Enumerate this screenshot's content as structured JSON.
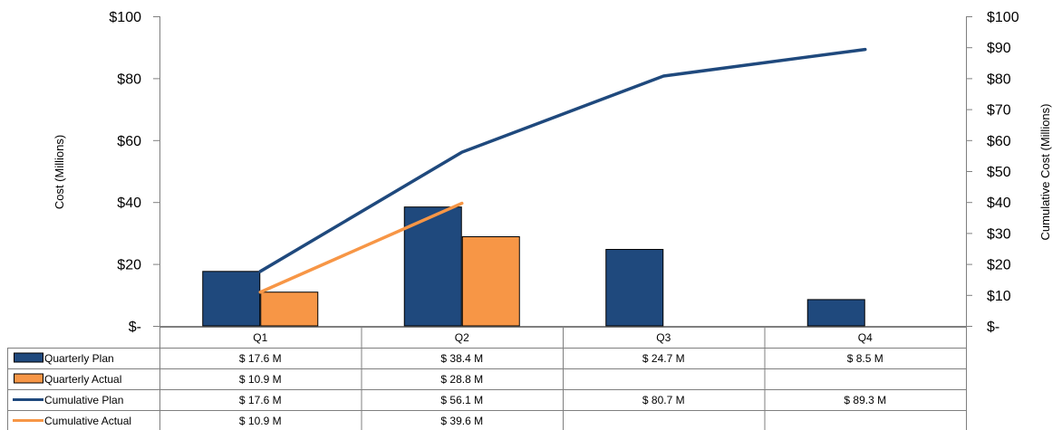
{
  "chart_data": {
    "type": "bar",
    "categories": [
      "Q1",
      "Q2",
      "Q3",
      "Q4"
    ],
    "series": [
      {
        "name": "Quarterly Plan",
        "kind": "bar",
        "axis": "left",
        "color": "#1f497d",
        "values": [
          17.6,
          38.4,
          24.7,
          8.5
        ],
        "labels": [
          "$ 17.6 M",
          "$ 38.4 M",
          "$ 24.7 M",
          "$ 8.5 M"
        ]
      },
      {
        "name": "Quarterly Actual",
        "kind": "bar",
        "axis": "left",
        "color": "#f79646",
        "values": [
          10.9,
          28.8,
          null,
          null
        ],
        "labels": [
          "$ 10.9 M",
          "$ 28.8 M",
          "",
          ""
        ]
      },
      {
        "name": "Cumulative Plan",
        "kind": "line",
        "axis": "right",
        "color": "#1f497d",
        "values": [
          17.6,
          56.1,
          80.7,
          89.3
        ],
        "labels": [
          "$ 17.6 M",
          "$ 56.1 M",
          "$ 80.7 M",
          "$ 89.3 M"
        ]
      },
      {
        "name": "Cumulative Actual",
        "kind": "line",
        "axis": "right",
        "color": "#f79646",
        "values": [
          10.9,
          39.6,
          null,
          null
        ],
        "labels": [
          "$ 10.9 M",
          "$ 39.6 M",
          "",
          ""
        ]
      }
    ],
    "ylabel": "Cost (Millions)",
    "ylabel_right": "Cumulative Cost (Millions)",
    "ylim": [
      0,
      100
    ],
    "ylim_right": [
      0,
      100
    ],
    "yticks": [
      "$-",
      "$20",
      "$40",
      "$60",
      "$80",
      "$100"
    ],
    "yticks_right": [
      "$-",
      "$10",
      "$20",
      "$30",
      "$40",
      "$50",
      "$60",
      "$70",
      "$80",
      "$90",
      "$100"
    ],
    "grid": false,
    "legend": "data-table"
  }
}
